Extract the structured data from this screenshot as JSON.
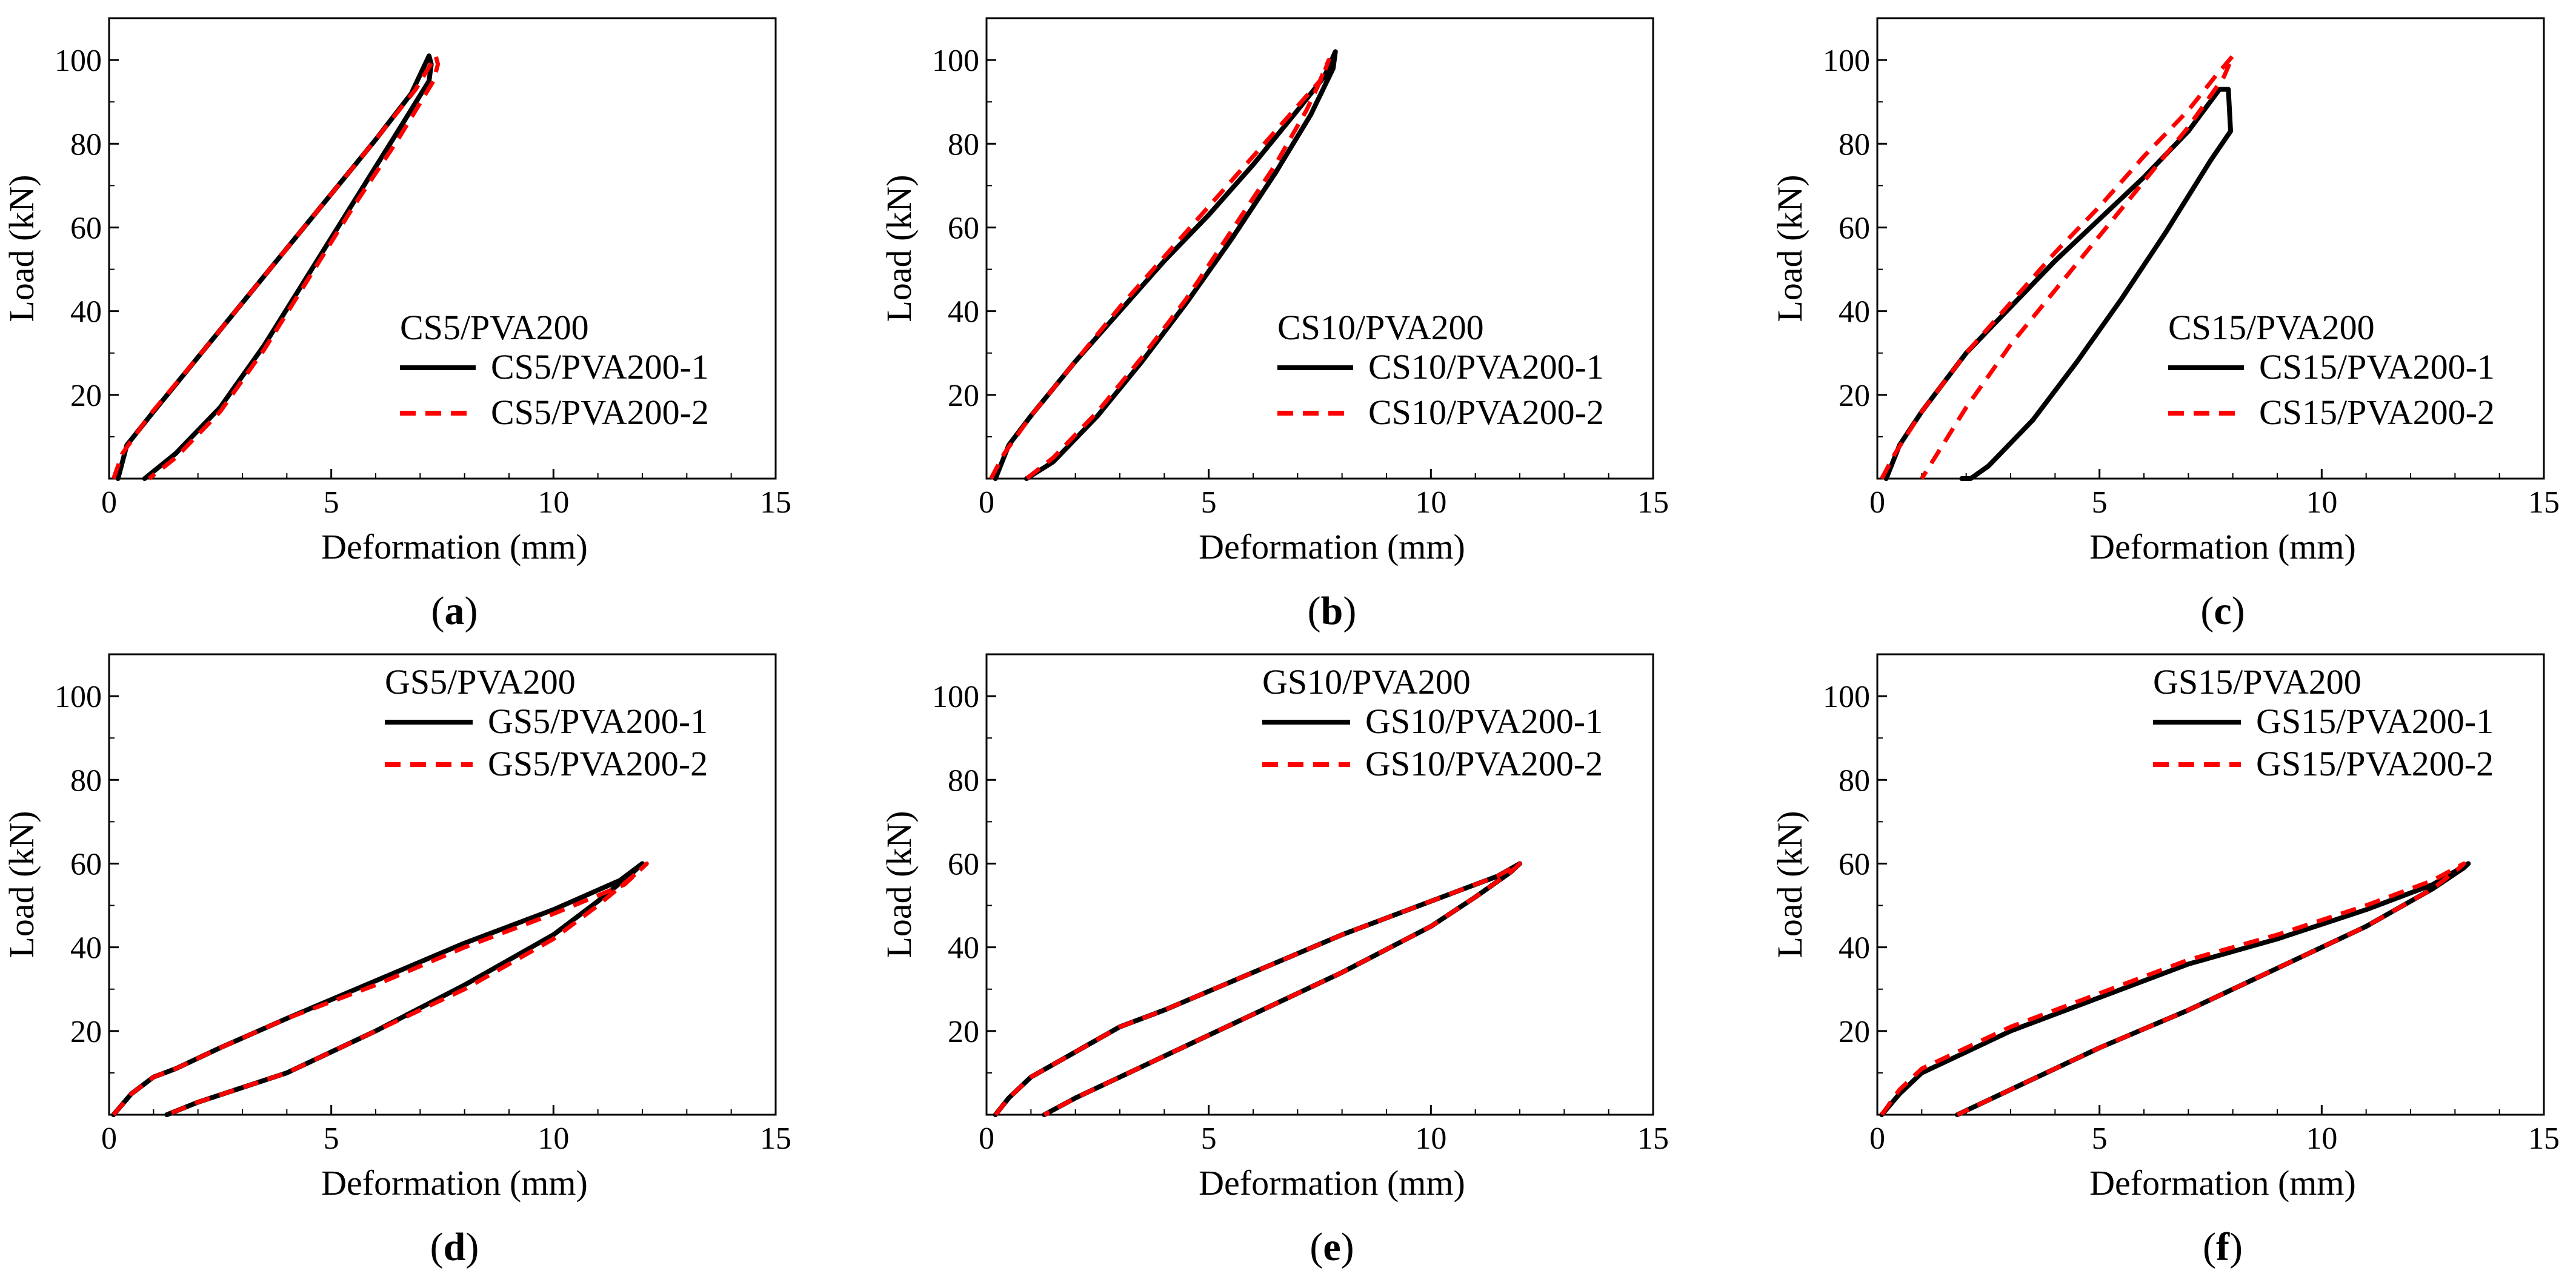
{
  "chart_data": [
    {
      "type": "line",
      "panel_label": "a",
      "xlabel": "Deformation (mm)",
      "ylabel": "Load (kN)",
      "xlim": [
        0,
        15
      ],
      "ylim": [
        0,
        110
      ],
      "xticks": [
        0,
        5,
        10,
        15
      ],
      "yticks": [
        20,
        40,
        60,
        80,
        100
      ],
      "grid": false,
      "legend_title": "CS5/PVA200",
      "legend_position": "center-right",
      "series": [
        {
          "name": "CS5/PVA200-1",
          "color": "#000000",
          "style": "solid",
          "x": [
            0.2,
            0.4,
            1.0,
            2.0,
            3.0,
            4.0,
            5.0,
            6.0,
            6.8,
            7.2,
            7.25,
            7.2,
            6.5,
            5.5,
            4.5,
            3.5,
            2.5,
            1.5,
            0.8
          ],
          "y": [
            0,
            8,
            16,
            29,
            42,
            55,
            68,
            81,
            92,
            101,
            99,
            95,
            83,
            66,
            49,
            32,
            17,
            6,
            0
          ]
        },
        {
          "name": "CS5/PVA200-2",
          "color": "#ff0000",
          "style": "dashed",
          "x": [
            0.1,
            0.3,
            0.9,
            2.0,
            3.0,
            4.0,
            5.0,
            6.0,
            6.9,
            7.35,
            7.4,
            7.3,
            6.5,
            5.5,
            4.5,
            3.5,
            2.5,
            1.5,
            0.9
          ],
          "y": [
            0,
            6,
            15,
            29,
            42,
            55,
            68,
            81,
            93,
            101,
            99,
            95,
            81,
            65,
            48,
            31,
            16,
            5,
            0
          ]
        }
      ]
    },
    {
      "type": "line",
      "panel_label": "b",
      "xlabel": "Deformation (mm)",
      "ylabel": "Load (kN)",
      "xlim": [
        0,
        15
      ],
      "ylim": [
        0,
        110
      ],
      "xticks": [
        0,
        5,
        10,
        15
      ],
      "yticks": [
        20,
        40,
        60,
        80,
        100
      ],
      "grid": false,
      "legend_title": "CS10/PVA200",
      "legend_position": "center-right",
      "series": [
        {
          "name": "CS10/PVA200-1",
          "color": "#000000",
          "style": "solid",
          "x": [
            0.2,
            0.5,
            1.0,
            2.0,
            3.0,
            4.0,
            5.0,
            6.0,
            7.0,
            7.6,
            7.85,
            7.8,
            7.3,
            6.5,
            5.5,
            4.5,
            3.5,
            2.5,
            1.5,
            0.9
          ],
          "y": [
            0,
            8,
            15,
            28,
            40,
            52,
            63,
            75,
            88,
            96,
            102,
            98,
            87,
            73,
            57,
            42,
            28,
            15,
            4,
            0
          ]
        },
        {
          "name": "CS10/PVA200-2",
          "color": "#ff0000",
          "style": "dashed",
          "x": [
            0.1,
            0.4,
            1.0,
            2.0,
            3.0,
            4.0,
            5.0,
            6.0,
            7.0,
            7.5,
            7.7,
            7.6,
            7.2,
            6.5,
            5.5,
            4.5,
            3.5,
            2.5,
            1.5,
            0.9
          ],
          "y": [
            0,
            6,
            15,
            28,
            41,
            53,
            65,
            77,
            89,
            95,
            100,
            97,
            88,
            75,
            59,
            43,
            29,
            16,
            5,
            0
          ]
        }
      ]
    },
    {
      "type": "line",
      "panel_label": "c",
      "xlabel": "Deformation (mm)",
      "ylabel": "Load (kN)",
      "xlim": [
        0,
        15
      ],
      "ylim": [
        0,
        110
      ],
      "xticks": [
        0,
        5,
        10,
        15
      ],
      "yticks": [
        20,
        40,
        60,
        80,
        100
      ],
      "grid": false,
      "legend_title": "CS15/PVA200",
      "legend_position": "center-right",
      "series": [
        {
          "name": "CS15/PVA200-1",
          "color": "#000000",
          "style": "solid",
          "x": [
            0.2,
            0.5,
            1.0,
            2.0,
            3.0,
            4.0,
            5.0,
            6.0,
            7.0,
            7.7,
            7.9,
            7.95,
            7.5,
            6.5,
            5.5,
            4.5,
            3.5,
            2.5,
            2.1,
            1.9
          ],
          "y": [
            0,
            8,
            16,
            30,
            41,
            52,
            62,
            72,
            83,
            93,
            93,
            83,
            76,
            59,
            43,
            28,
            14,
            3,
            0,
            0
          ]
        },
        {
          "name": "CS15/PVA200-2",
          "color": "#ff0000",
          "style": "dashed",
          "x": [
            0.1,
            0.4,
            1.0,
            2.0,
            3.0,
            4.0,
            5.0,
            6.0,
            7.0,
            7.6,
            8.0,
            7.8,
            7.0,
            6.0,
            5.0,
            4.0,
            3.0,
            2.0,
            1.0
          ],
          "y": [
            0,
            6,
            16,
            30,
            42,
            54,
            65,
            77,
            88,
            96,
            101,
            96,
            84,
            71,
            58,
            45,
            32,
            17,
            0
          ]
        }
      ]
    },
    {
      "type": "line",
      "panel_label": "d",
      "xlabel": "Deformation (mm)",
      "ylabel": "Load (kN)",
      "xlim": [
        0,
        15
      ],
      "ylim": [
        0,
        110
      ],
      "xticks": [
        0,
        5,
        10,
        15
      ],
      "yticks": [
        20,
        40,
        60,
        80,
        100
      ],
      "grid": false,
      "legend_title": "GS5/PVA200",
      "legend_position": "top-right",
      "series": [
        {
          "name": "GS5/PVA200-1",
          "color": "#000000",
          "style": "solid",
          "x": [
            0.1,
            0.5,
            1.0,
            1.5,
            2.5,
            4.0,
            6.0,
            8.0,
            10.0,
            11.5,
            12.0,
            11.8,
            11.0,
            10.0,
            8.0,
            6.0,
            4.0,
            2.0,
            1.3
          ],
          "y": [
            0,
            5,
            9,
            11,
            16,
            23,
            32,
            41,
            49,
            56,
            60,
            58,
            51,
            43,
            31,
            20,
            10,
            3,
            0
          ]
        },
        {
          "name": "GS5/PVA200-2",
          "color": "#ff0000",
          "style": "dashed",
          "x": [
            0.1,
            0.5,
            1.0,
            1.5,
            2.5,
            4.0,
            6.0,
            8.0,
            10.0,
            11.6,
            12.1,
            11.9,
            11.0,
            10.0,
            8.0,
            6.0,
            4.0,
            2.0,
            1.3
          ],
          "y": [
            0,
            5,
            9,
            11,
            16,
            23,
            31,
            40,
            48,
            55,
            60,
            58,
            50,
            42,
            30,
            20,
            10,
            3,
            0
          ]
        }
      ]
    },
    {
      "type": "line",
      "panel_label": "e",
      "xlabel": "Deformation (mm)",
      "ylabel": "Load (kN)",
      "xlim": [
        0,
        15
      ],
      "ylim": [
        0,
        110
      ],
      "xticks": [
        0,
        5,
        10,
        15
      ],
      "yticks": [
        20,
        40,
        60,
        80,
        100
      ],
      "grid": false,
      "legend_title": "GS10/PVA200",
      "legend_position": "top-right",
      "series": [
        {
          "name": "GS10/PVA200-1",
          "color": "#000000",
          "style": "solid",
          "x": [
            0.2,
            0.5,
            1.0,
            2.0,
            3.0,
            4.0,
            6.0,
            8.0,
            10.0,
            11.5,
            12.0,
            11.8,
            11.0,
            10.0,
            8.0,
            6.0,
            4.0,
            2.0,
            1.3
          ],
          "y": [
            0,
            4,
            9,
            15,
            21,
            25,
            34,
            43,
            51,
            57,
            60,
            58,
            52,
            45,
            34,
            24,
            14,
            4,
            0
          ]
        },
        {
          "name": "GS10/PVA200-2",
          "color": "#ff0000",
          "style": "dashed",
          "x": [
            0.2,
            0.5,
            1.0,
            2.0,
            3.0,
            4.0,
            6.0,
            8.0,
            10.0,
            11.5,
            12.0,
            11.8,
            11.0,
            10.0,
            8.0,
            6.0,
            4.0,
            2.0,
            1.3
          ],
          "y": [
            0,
            4,
            9,
            15,
            21,
            25,
            34,
            43,
            51,
            57,
            60,
            58,
            52,
            45,
            34,
            24,
            14,
            4,
            0
          ]
        }
      ]
    },
    {
      "type": "line",
      "panel_label": "f",
      "xlabel": "Deformation (mm)",
      "ylabel": "Load (kN)",
      "xlim": [
        0,
        15
      ],
      "ylim": [
        0,
        110
      ],
      "xticks": [
        0,
        5,
        10,
        15
      ],
      "yticks": [
        20,
        40,
        60,
        80,
        100
      ],
      "grid": false,
      "legend_title": "GS15/PVA200",
      "legend_position": "top-right",
      "series": [
        {
          "name": "GS15/PVA200-1",
          "color": "#000000",
          "style": "solid",
          "x": [
            0.1,
            0.5,
            1.0,
            2.0,
            3.0,
            5.0,
            7.0,
            9.0,
            11.0,
            12.5,
            13.3,
            13.2,
            12.5,
            11.0,
            9.0,
            7.0,
            5.0,
            3.0,
            1.8
          ],
          "y": [
            0,
            5,
            10,
            15,
            20,
            28,
            36,
            42,
            49,
            55,
            60,
            59,
            54,
            45,
            35,
            25,
            16,
            6,
            0
          ]
        },
        {
          "name": "GS15/PVA200-2",
          "color": "#ff0000",
          "style": "dashed",
          "x": [
            0.1,
            0.5,
            1.0,
            2.0,
            3.0,
            5.0,
            7.0,
            9.0,
            11.0,
            12.5,
            13.2,
            13.1,
            12.5,
            11.0,
            9.0,
            7.0,
            5.0,
            3.0,
            1.8
          ],
          "y": [
            0,
            6,
            11,
            16,
            21,
            29,
            37,
            43,
            50,
            56,
            60,
            59,
            54,
            45,
            35,
            25,
            16,
            6,
            0
          ]
        }
      ]
    }
  ]
}
